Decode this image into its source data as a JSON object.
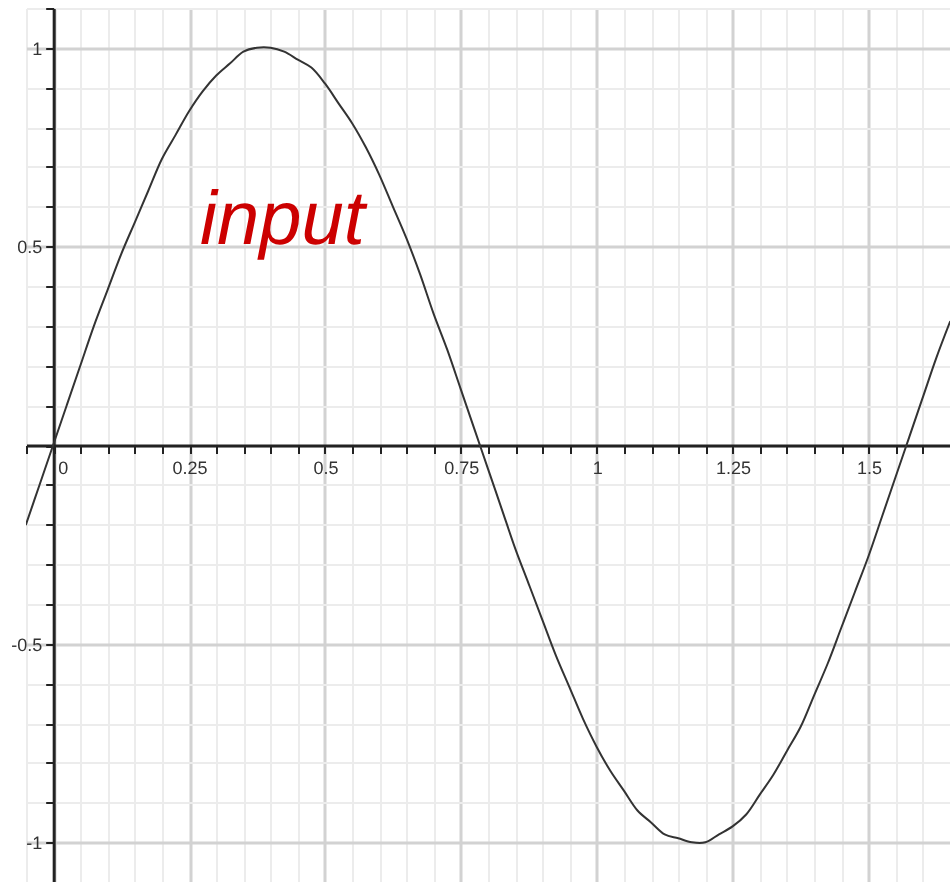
{
  "chart_data": {
    "type": "line",
    "x": [
      -0.05,
      -0.025,
      0,
      0.025,
      0.05,
      0.075,
      0.1,
      0.125,
      0.15,
      0.175,
      0.2,
      0.225,
      0.25,
      0.275,
      0.3,
      0.325,
      0.35,
      0.375,
      0.4,
      0.425,
      0.45,
      0.475,
      0.5,
      0.525,
      0.55,
      0.575,
      0.6,
      0.625,
      0.65,
      0.675,
      0.7,
      0.725,
      0.75,
      0.775,
      0.8,
      0.825,
      0.85,
      0.875,
      0.9,
      0.925,
      0.95,
      0.975,
      1,
      1.025,
      1.05,
      1.075,
      1.1,
      1.125,
      1.15,
      1.175,
      1.2,
      1.225,
      1.25,
      1.275,
      1.3,
      1.325,
      1.35,
      1.375,
      1.4,
      1.425,
      1.45,
      1.475,
      1.5,
      1.525,
      1.55,
      1.575,
      1.6,
      1.625,
      1.65
    ],
    "series": [
      {
        "color": "#333333",
        "values": [
          -0.2,
          -0.1,
          0,
          0.1,
          0.2,
          0.3,
          0.39,
          0.48,
          0.56,
          0.64,
          0.72,
          0.78,
          0.84,
          0.89,
          0.93,
          0.96,
          0.99,
          1,
          1,
          0.99,
          0.97,
          0.95,
          0.91,
          0.86,
          0.81,
          0.75,
          0.68,
          0.6,
          0.52,
          0.43,
          0.33,
          0.24,
          0.14,
          0.04,
          -0.06,
          -0.16,
          -0.26,
          -0.35,
          -0.44,
          -0.53,
          -0.61,
          -0.69,
          -0.76,
          -0.82,
          -0.87,
          -0.92,
          -0.95,
          -0.98,
          -0.99,
          -1,
          -1,
          -0.98,
          -0.96,
          -0.93,
          -0.88,
          -0.83,
          -0.77,
          -0.71,
          -0.63,
          -0.55,
          -0.46,
          -0.37,
          -0.28,
          -0.18,
          -0.08,
          0.02,
          0.12,
          0.22,
          0.31
        ]
      }
    ],
    "annotations": [
      "input"
    ],
    "xlim": [
      -0.05,
      1.65
    ],
    "ylim": [
      -1.1,
      1.1
    ],
    "xticks": [
      {
        "value": -0.05,
        "label": null
      },
      0,
      {
        "value": 0.05,
        "label": null
      },
      {
        "value": 0.1,
        "label": null
      },
      {
        "value": 0.15,
        "label": null
      },
      {
        "value": 0.2,
        "label": null
      },
      0.25,
      {
        "value": 0.3,
        "label": null
      },
      {
        "value": 0.35,
        "label": null
      },
      {
        "value": 0.4,
        "label": null
      },
      {
        "value": 0.45,
        "label": null
      },
      0.5,
      {
        "value": 0.55,
        "label": null
      },
      {
        "value": 0.6,
        "label": null
      },
      {
        "value": 0.65,
        "label": null
      },
      {
        "value": 0.7,
        "label": null
      },
      0.75,
      {
        "value": 0.8,
        "label": null
      },
      {
        "value": 0.85,
        "label": null
      },
      {
        "value": 0.9,
        "label": null
      },
      {
        "value": 0.95,
        "label": null
      },
      1,
      {
        "value": 1.05,
        "label": null
      },
      {
        "value": 1.1,
        "label": null
      },
      {
        "value": 1.15,
        "label": null
      },
      {
        "value": 1.2,
        "label": null
      },
      1.25,
      {
        "value": 1.3,
        "label": null
      },
      {
        "value": 1.35,
        "label": null
      },
      {
        "value": 1.4,
        "label": null
      },
      {
        "value": 1.45,
        "label": null
      },
      1.5,
      {
        "value": 1.55,
        "label": null
      },
      {
        "value": 1.6,
        "label": null
      },
      {
        "value": 1.65,
        "label": null
      }
    ],
    "yticks": [
      {
        "value": -1.1,
        "label": null
      },
      -1,
      {
        "value": -0.9,
        "label": null
      },
      {
        "value": -0.8,
        "label": null
      },
      {
        "value": -0.7,
        "label": null
      },
      {
        "value": -0.6,
        "label": null
      },
      -0.5,
      {
        "value": -0.4,
        "label": null
      },
      {
        "value": -0.3,
        "label": null
      },
      {
        "value": -0.2,
        "label": null
      },
      {
        "value": -0.1,
        "label": null
      },
      {
        "value": 0,
        "label": null
      },
      {
        "value": 0.1,
        "label": null
      },
      {
        "value": 0.2,
        "label": null
      },
      {
        "value": 0.3,
        "label": null
      },
      {
        "value": 0.4,
        "label": null
      },
      0.5,
      {
        "value": 0.6,
        "label": null
      },
      {
        "value": 0.7,
        "label": null
      },
      {
        "value": 0.8,
        "label": null
      },
      {
        "value": 0.9,
        "label": null
      },
      1,
      {
        "value": 1.1,
        "label": null
      }
    ],
    "grid": true,
    "line_style": "solid"
  }
}
